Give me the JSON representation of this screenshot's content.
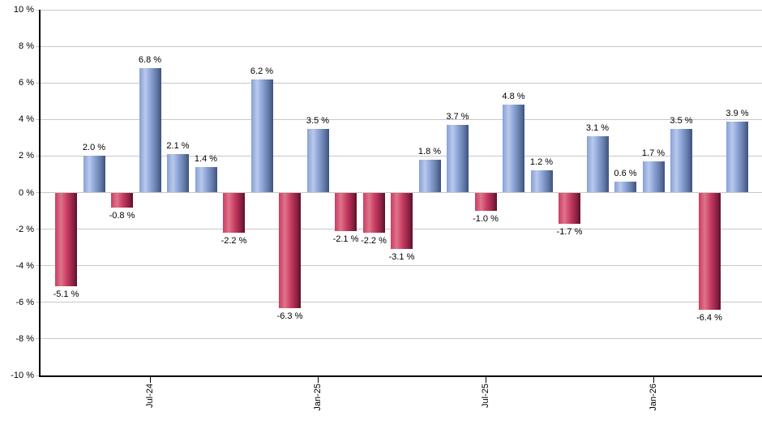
{
  "chart_data": {
    "type": "bar",
    "title": "",
    "xlabel": "",
    "ylabel": "",
    "ylim": [
      -10,
      10
    ],
    "grid": true,
    "legend": "none",
    "values": [
      -5.1,
      2.0,
      -0.8,
      6.8,
      2.1,
      1.4,
      -2.2,
      6.2,
      -6.3,
      3.5,
      -2.1,
      -2.2,
      -3.1,
      1.8,
      3.7,
      -1.0,
      4.8,
      1.2,
      -1.7,
      3.1,
      0.6,
      1.7,
      3.5,
      -6.4,
      3.9
    ],
    "bar_labels": [
      "-5.1 %",
      "2.0 %",
      "-0.8 %",
      "6.8 %",
      "2.1 %",
      "1.4 %",
      "-2.2 %",
      "6.2 %",
      "-6.3 %",
      "3.5 %",
      "-2.1 %",
      "-2.2 %",
      "-3.1 %",
      "1.8 %",
      "3.7 %",
      "-1.0 %",
      "4.8 %",
      "1.2 %",
      "-1.7 %",
      "3.1 %",
      "0.6 %",
      "1.7 %",
      "3.5 %",
      "-6.4 %",
      "3.9 %"
    ],
    "y_ticks": [
      {
        "v": 10,
        "label": "10 %"
      },
      {
        "v": 8,
        "label": "8 %"
      },
      {
        "v": 6,
        "label": "6 %"
      },
      {
        "v": 4,
        "label": "4 %"
      },
      {
        "v": 2,
        "label": "2 %"
      },
      {
        "v": 0,
        "label": "0 %"
      },
      {
        "v": -2,
        "label": "-2 %"
      },
      {
        "v": -4,
        "label": "-4 %"
      },
      {
        "v": -6,
        "label": "-6 %"
      },
      {
        "v": -8,
        "label": "-8 %"
      },
      {
        "v": -10,
        "label": "-10 %"
      }
    ],
    "x_ticks": [
      {
        "bar_index": 3,
        "label": "Jul-24"
      },
      {
        "bar_index": 9,
        "label": "Jan-25"
      },
      {
        "bar_index": 15,
        "label": "Jul-25"
      },
      {
        "bar_index": 21,
        "label": "Jan-26"
      }
    ],
    "colors": {
      "positive_bar_gradient": [
        "#87a0d4",
        "#b9c9ec",
        "#8aa2d6",
        "#6a81ad",
        "#3e527e"
      ],
      "negative_bar_gradient": [
        "#cb3c61",
        "#df748b",
        "#c73a5f",
        "#8f2547",
        "#5e1127"
      ],
      "gridline": "#c8c8c8",
      "axis": "#000000",
      "label_text": "#000000",
      "background": "#ffffff"
    }
  }
}
